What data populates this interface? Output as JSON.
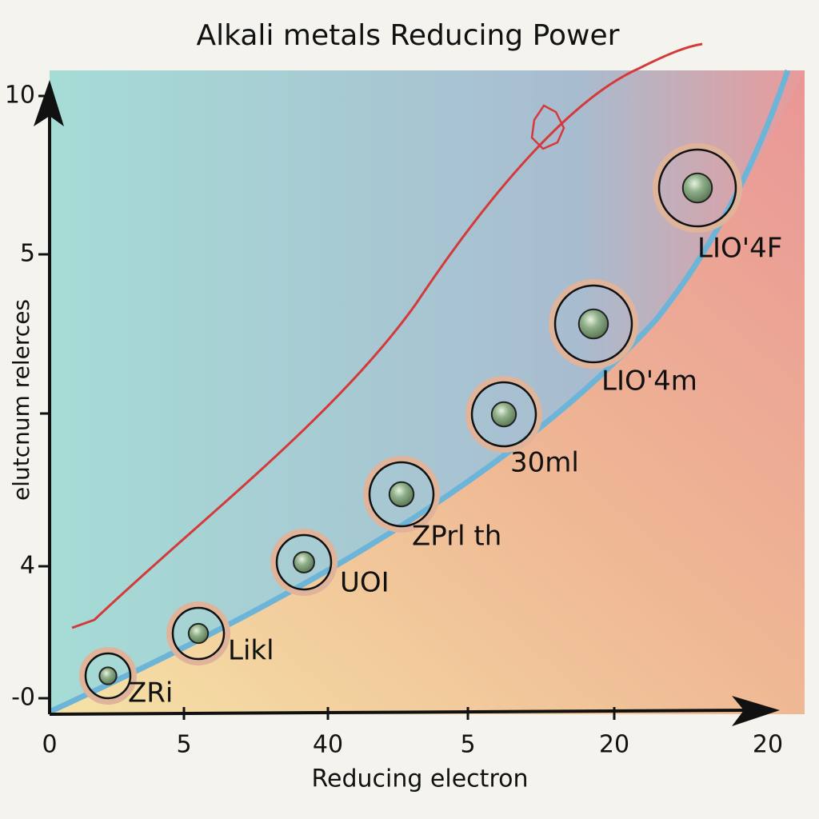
{
  "title": "Alkali metals Reducing Power",
  "y_axis": {
    "label": "elutcnum relerces",
    "ticks": [
      "10",
      "5",
      "4",
      "-0"
    ]
  },
  "x_axis": {
    "label": "Reducing electron",
    "ticks": [
      "0",
      "5",
      "40",
      "5",
      "20",
      "20"
    ]
  },
  "points": {
    "labels": [
      "ZRi",
      "Likl",
      "UOI",
      "ZPrl th",
      "30ml",
      "LIO'4m",
      "LIO'4F"
    ]
  }
}
